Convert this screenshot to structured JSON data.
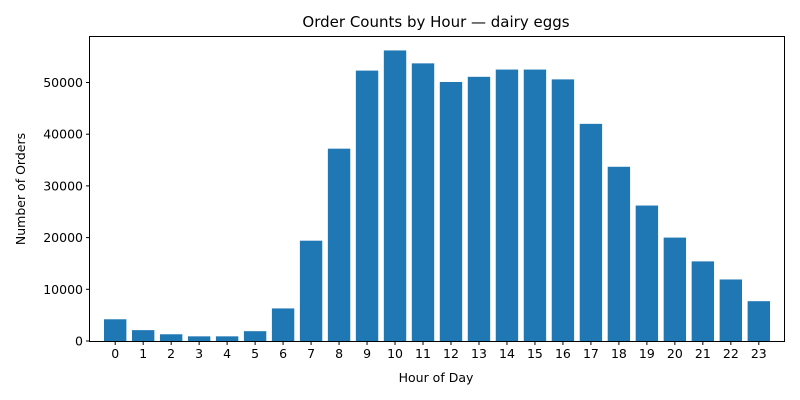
{
  "chart_data": {
    "type": "bar",
    "title": "Order Counts by Hour — dairy eggs",
    "xlabel": "Hour of Day",
    "ylabel": "Number of Orders",
    "categories": [
      "0",
      "1",
      "2",
      "3",
      "4",
      "5",
      "6",
      "7",
      "8",
      "9",
      "10",
      "11",
      "12",
      "13",
      "14",
      "15",
      "16",
      "17",
      "18",
      "19",
      "20",
      "21",
      "22",
      "23"
    ],
    "values": [
      4200,
      2100,
      1300,
      900,
      900,
      1900,
      6300,
      19400,
      37200,
      52300,
      56200,
      53700,
      50100,
      51100,
      52500,
      52500,
      50600,
      42000,
      33700,
      26200,
      20000,
      15400,
      11900,
      7700
    ],
    "ylim": [
      0,
      58800
    ],
    "yticks": [
      0,
      10000,
      20000,
      30000,
      40000,
      50000
    ],
    "ytick_labels": [
      "0",
      "10000",
      "20000",
      "30000",
      "40000",
      "50000"
    ],
    "bar_color": "#1f77b4",
    "grid": false,
    "legend": "none"
  }
}
